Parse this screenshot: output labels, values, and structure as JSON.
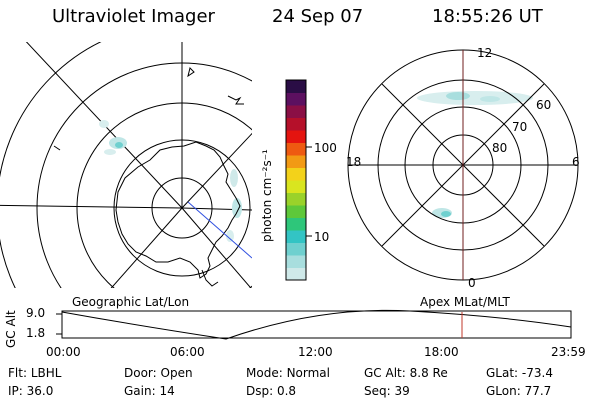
{
  "header": {
    "instrument": "Ultraviolet Imager",
    "date": "24 Sep 07",
    "time": "18:55:26 UT"
  },
  "colorbar": {
    "label": "photon cm⁻²s⁻¹",
    "ticks": [
      "100",
      "10"
    ],
    "colors": [
      "#cfe9e9",
      "#a8dede",
      "#6fd0cf",
      "#33c4c4",
      "#2ec67a",
      "#5ec83a",
      "#9ad22a",
      "#d9e51f",
      "#f3d21a",
      "#f29a14",
      "#ee5a11",
      "#e4140f",
      "#b5102a",
      "#8a0f45",
      "#5c1060",
      "#2a0d45"
    ]
  },
  "left_map": {
    "label": "Geographic Lat/Lon"
  },
  "right_map": {
    "label": "Apex MLat/MLT",
    "mlt_labels": {
      "top": "12",
      "bottom": "0",
      "left": "18",
      "right": "6"
    },
    "lat_labels": [
      "60",
      "70",
      "80"
    ]
  },
  "timeline": {
    "ylabel": "GC Alt",
    "yticks": [
      "9.0",
      "1.8"
    ],
    "xticks": [
      "00:00",
      "06:00",
      "12:00",
      "18:00",
      "23:59"
    ],
    "current_time_marker": "18:55"
  },
  "status": {
    "flt_label": "Flt:",
    "flt_value": "LBHL",
    "door_label": "Door:",
    "door_value": "Open",
    "mode_label": "Mode:",
    "mode_value": "Normal",
    "gcalt_label": "GC Alt:",
    "gcalt_value": "8.8 Re",
    "glat_label": "GLat:",
    "glat_value": "-73.4",
    "ip_label": "IP:",
    "ip_value": "36.0",
    "gain_label": "Gain:",
    "gain_value": "14",
    "dsp_label": "Dsp:",
    "dsp_value": "0.8",
    "seq_label": "Seq:",
    "seq_value": "39",
    "glon_label": "GLon:",
    "glon_value": "77.7"
  }
}
